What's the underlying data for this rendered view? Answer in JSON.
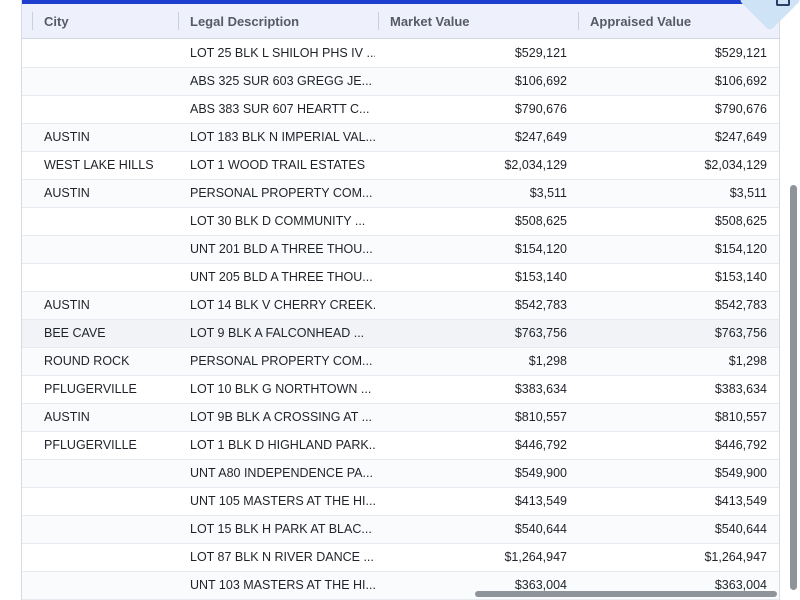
{
  "table": {
    "columns": {
      "city": "City",
      "legal_description": "Legal Description",
      "market_value": "Market Value",
      "appraised_value": "Appraised Value"
    },
    "rows": [
      {
        "city": "",
        "legal": "LOT 25 BLK L SHILOH PHS IV ...",
        "market": "$529,121",
        "appraised": "$529,121"
      },
      {
        "city": "",
        "legal": "ABS 325 SUR 603 GREGG JE...",
        "market": "$106,692",
        "appraised": "$106,692"
      },
      {
        "city": "",
        "legal": "ABS 383 SUR 607 HEARTT C...",
        "market": "$790,676",
        "appraised": "$790,676"
      },
      {
        "city": "AUSTIN",
        "legal": "LOT 183 BLK N IMPERIAL VAL...",
        "market": "$247,649",
        "appraised": "$247,649"
      },
      {
        "city": "WEST LAKE HILLS",
        "legal": "LOT 1 WOOD TRAIL ESTATES",
        "market": "$2,034,129",
        "appraised": "$2,034,129"
      },
      {
        "city": "AUSTIN",
        "legal": "PERSONAL PROPERTY COM...",
        "market": "$3,511",
        "appraised": "$3,511"
      },
      {
        "city": "",
        "legal": "LOT 30 BLK D COMMUNITY ...",
        "market": "$508,625",
        "appraised": "$508,625"
      },
      {
        "city": "",
        "legal": "UNT 201 BLD A THREE THOU...",
        "market": "$154,120",
        "appraised": "$154,120"
      },
      {
        "city": "",
        "legal": "UNT 205 BLD A THREE THOU...",
        "market": "$153,140",
        "appraised": "$153,140"
      },
      {
        "city": "AUSTIN",
        "legal": "LOT 14 BLK V CHERRY CREEK...",
        "market": "$542,783",
        "appraised": "$542,783"
      },
      {
        "city": "BEE CAVE",
        "legal": "LOT 9 BLK A FALCONHEAD ...",
        "market": "$763,756",
        "appraised": "$763,756"
      },
      {
        "city": "ROUND ROCK",
        "legal": "PERSONAL PROPERTY COM...",
        "market": "$1,298",
        "appraised": "$1,298"
      },
      {
        "city": "PFLUGERVILLE",
        "legal": "LOT 10 BLK G NORTHTOWN ...",
        "market": "$383,634",
        "appraised": "$383,634"
      },
      {
        "city": "AUSTIN",
        "legal": "LOT 9B BLK A CROSSING AT ...",
        "market": "$810,557",
        "appraised": "$810,557"
      },
      {
        "city": "PFLUGERVILLE",
        "legal": "LOT 1 BLK D HIGHLAND PARK...",
        "market": "$446,792",
        "appraised": "$446,792"
      },
      {
        "city": "",
        "legal": "UNT A80 INDEPENDENCE PA...",
        "market": "$549,900",
        "appraised": "$549,900"
      },
      {
        "city": "",
        "legal": "UNT 105 MASTERS AT THE HI...",
        "market": "$413,549",
        "appraised": "$413,549"
      },
      {
        "city": "",
        "legal": "LOT 15 BLK H PARK AT BLAC...",
        "market": "$540,644",
        "appraised": "$540,644"
      },
      {
        "city": "",
        "legal": "LOT 87 BLK N RIVER DANCE ...",
        "market": "$1,264,947",
        "appraised": "$1,264,947"
      },
      {
        "city": "",
        "legal": "UNT 103 MASTERS AT THE HI...",
        "market": "$363,004",
        "appraised": "$363,004"
      }
    ]
  },
  "icons": {
    "corner": "export-icon"
  },
  "colors": {
    "accent": "#1d3ecf",
    "header_bg": "#eef1fb",
    "corner_tab": "#cfe3f7",
    "scrollbar": "#8f949b"
  }
}
